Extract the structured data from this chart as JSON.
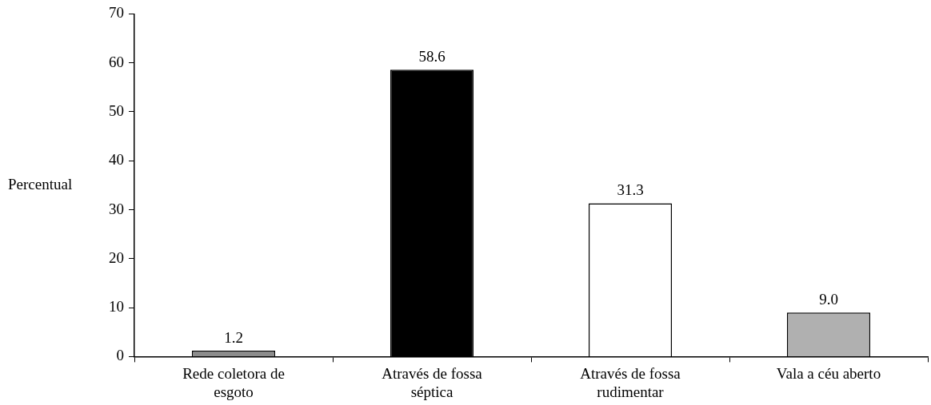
{
  "chart_data": {
    "type": "bar",
    "ylabel": "Percentual",
    "categories": [
      "Rede coletora de esgoto",
      "Através de fossa séptica",
      "Através de fossa rudimentar",
      "Vala a céu aberto"
    ],
    "values": [
      1.2,
      58.6,
      31.3,
      9.0
    ],
    "colors": [
      "#8c8c8c",
      "#000000",
      "#ffffff",
      "#b0b0b0"
    ],
    "value_labels": [
      "1.2",
      "58.6",
      "31.3",
      "9.0"
    ],
    "ylim": [
      0,
      70
    ],
    "yticks": [
      0,
      10,
      20,
      30,
      40,
      50,
      60,
      70
    ],
    "grid": false,
    "legend": false
  }
}
